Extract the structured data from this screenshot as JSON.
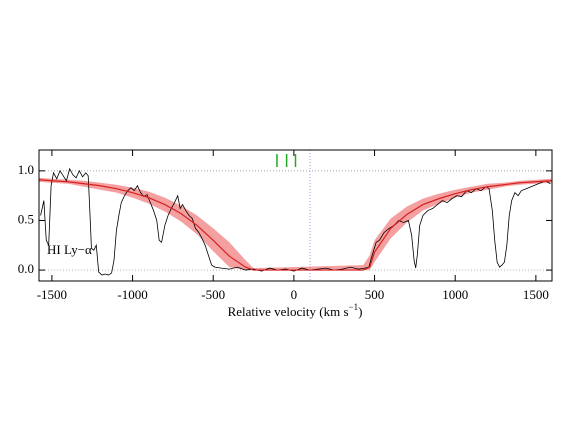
{
  "chart_data": {
    "type": "line",
    "xlabel": [
      "Relative velocity (km s",
      "−1",
      ")"
    ],
    "annotation": "HI Ly−α",
    "xlim": [
      -1580,
      1600
    ],
    "ylim": [
      -0.11,
      1.21
    ],
    "xticks": [
      -1500,
      -1000,
      -500,
      0,
      500,
      1000,
      1500
    ],
    "yticks": [
      {
        "value": 0,
        "label": "0.0"
      },
      {
        "value": 0.5,
        "label": "0.5"
      },
      {
        "value": 1,
        "label": "1.0"
      }
    ],
    "hlines": [
      0,
      1
    ],
    "vline": 100,
    "markers": {
      "x": [
        -105,
        -45,
        10
      ],
      "color": "#22aa22"
    },
    "band": {
      "color": "#f4a0a0",
      "x": [
        -1580,
        -1500,
        -1400,
        -1300,
        -1200,
        -1100,
        -1000,
        -900,
        -800,
        -700,
        -600,
        -500,
        -400,
        -300,
        -250,
        430,
        470,
        500,
        600,
        700,
        800,
        900,
        1000,
        1100,
        1200,
        1300,
        1400,
        1500,
        1600
      ],
      "upper": [
        0.93,
        0.92,
        0.91,
        0.9,
        0.88,
        0.86,
        0.83,
        0.79,
        0.73,
        0.65,
        0.55,
        0.42,
        0.28,
        0.1,
        0.02,
        0.05,
        0.15,
        0.3,
        0.52,
        0.64,
        0.72,
        0.77,
        0.81,
        0.84,
        0.87,
        0.88,
        0.9,
        0.91,
        0.92
      ],
      "lower": [
        0.89,
        0.88,
        0.87,
        0.84,
        0.81,
        0.78,
        0.73,
        0.67,
        0.59,
        0.49,
        0.36,
        0.19,
        0.03,
        0,
        0,
        0,
        0,
        0.08,
        0.32,
        0.48,
        0.6,
        0.67,
        0.73,
        0.78,
        0.81,
        0.84,
        0.86,
        0.87,
        0.88
      ]
    },
    "series": [
      {
        "color": "#000000",
        "x": [
          -1570,
          -1550,
          -1535,
          -1520,
          -1505,
          -1490,
          -1470,
          -1450,
          -1430,
          -1410,
          -1390,
          -1370,
          -1350,
          -1330,
          -1310,
          -1290,
          -1275,
          -1265,
          -1255,
          -1240,
          -1225,
          -1210,
          -1190,
          -1170,
          -1150,
          -1130,
          -1115,
          -1100,
          -1085,
          -1070,
          -1050,
          -1030,
          -1010,
          -990,
          -970,
          -950,
          -930,
          -910,
          -890,
          -870,
          -850,
          -835,
          -820,
          -800,
          -780,
          -760,
          -740,
          -720,
          -705,
          -690,
          -670,
          -650,
          -630,
          -610,
          -590,
          -570,
          -550,
          -530,
          -510,
          -490,
          -450,
          -400,
          -350,
          -300,
          -250,
          -200,
          -150,
          -100,
          -50,
          0,
          50,
          100,
          150,
          200,
          250,
          300,
          350,
          400,
          440,
          465,
          480,
          495,
          510,
          530,
          560,
          590,
          620,
          650,
          680,
          710,
          730,
          745,
          755,
          765,
          780,
          800,
          830,
          860,
          890,
          920,
          950,
          980,
          1010,
          1040,
          1070,
          1100,
          1130,
          1160,
          1190,
          1210,
          1230,
          1245,
          1260,
          1275,
          1290,
          1305,
          1320,
          1335,
          1350,
          1370,
          1390,
          1410,
          1440,
          1470,
          1500,
          1530,
          1560,
          1590
        ],
        "values": [
          0.55,
          0.7,
          0.3,
          0.25,
          0.85,
          0.98,
          0.92,
          1.0,
          0.95,
          0.9,
          1.02,
          0.96,
          0.93,
          1.0,
          0.94,
          0.98,
          0.95,
          0.6,
          0.22,
          0.2,
          0.25,
          -0.02,
          -0.05,
          -0.04,
          -0.05,
          -0.03,
          0.1,
          0.4,
          0.55,
          0.68,
          0.75,
          0.8,
          0.83,
          0.8,
          0.85,
          0.78,
          0.74,
          0.76,
          0.68,
          0.6,
          0.5,
          0.3,
          0.28,
          0.45,
          0.55,
          0.62,
          0.68,
          0.75,
          0.62,
          0.66,
          0.6,
          0.55,
          0.52,
          0.42,
          0.38,
          0.32,
          0.25,
          0.15,
          0.05,
          0.03,
          0.02,
          0.01,
          0.03,
          0,
          0.01,
          -0.01,
          0.02,
          0,
          0.01,
          -0.01,
          0.02,
          0,
          0.01,
          0.02,
          0,
          0.01,
          0.03,
          0.01,
          0.02,
          0.03,
          0.12,
          0.2,
          0.28,
          0.3,
          0.38,
          0.42,
          0.45,
          0.5,
          0.48,
          0.5,
          0.35,
          0.1,
          0.02,
          0.15,
          0.45,
          0.55,
          0.6,
          0.62,
          0.66,
          0.7,
          0.68,
          0.72,
          0.75,
          0.74,
          0.8,
          0.78,
          0.82,
          0.8,
          0.84,
          0.82,
          0.6,
          0.3,
          0.08,
          0.03,
          0.05,
          0.08,
          0.25,
          0.55,
          0.7,
          0.78,
          0.75,
          0.8,
          0.82,
          0.84,
          0.86,
          0.88,
          0.9,
          0.87
        ]
      },
      {
        "color": "#d62020",
        "x": [
          -1580,
          -1500,
          -1400,
          -1300,
          -1200,
          -1100,
          -1000,
          -900,
          -800,
          -700,
          -600,
          -500,
          -400,
          -300,
          -250,
          430,
          470,
          500,
          600,
          700,
          800,
          900,
          1000,
          1100,
          1200,
          1300,
          1400,
          1500,
          1600
        ],
        "values": [
          0.91,
          0.9,
          0.89,
          0.87,
          0.85,
          0.82,
          0.78,
          0.73,
          0.66,
          0.57,
          0.45,
          0.3,
          0.14,
          0.03,
          0,
          0,
          0.03,
          0.18,
          0.42,
          0.56,
          0.66,
          0.72,
          0.77,
          0.81,
          0.84,
          0.86,
          0.88,
          0.89,
          0.9
        ]
      }
    ]
  }
}
